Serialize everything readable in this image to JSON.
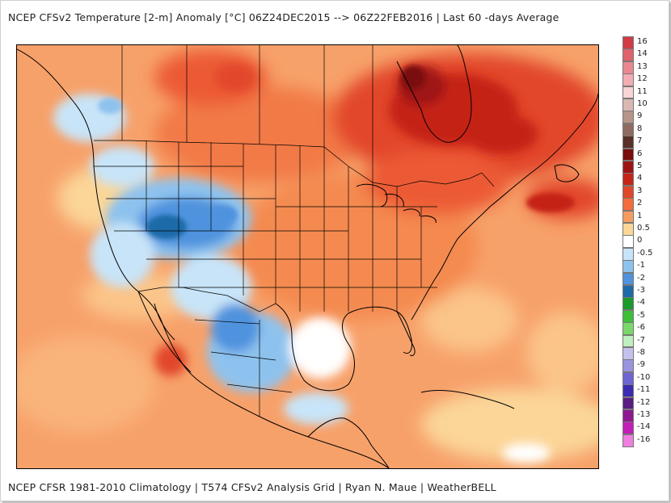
{
  "title": "NCEP CFSv2 Temperature [2-m] Anomaly  [°C] 06Z24DEC2015  --> 06Z22FEB2016 | Last 60 -days Average",
  "footer": "NCEP CFSR 1981-2010 Climatology | T574 CFSv2 Analysis Grid | Ryan N. Maue | WeatherBELL",
  "legend": {
    "labels": [
      "16",
      "14",
      "13",
      "12",
      "11",
      "10",
      "9",
      "8",
      "7",
      "6",
      "5",
      "4",
      "3",
      "2",
      "1",
      "0.5",
      "0",
      "-0.5",
      "-1",
      "-2",
      "-3",
      "-4",
      "-5",
      "-6",
      "-7",
      "-8",
      "-9",
      "-10",
      "-11",
      "-12",
      "-13",
      "-14",
      "-16"
    ],
    "colors": [
      "#d13b45",
      "#e0626c",
      "#ea8790",
      "#f2adb2",
      "#f8d4d4",
      "#d8b8b0",
      "#b8948a",
      "#8f6a60",
      "#5a3028",
      "#7a0c0c",
      "#9e1414",
      "#c52418",
      "#e2462a",
      "#f26c3c",
      "#f79c60",
      "#fbd698",
      "#ffffff",
      "#c8e4f8",
      "#8ec2ee",
      "#4f93de",
      "#1e6aa8",
      "#1a9a2a",
      "#3fbe3a",
      "#7ad86a",
      "#c0eec0",
      "#c4c0ec",
      "#9a94e0",
      "#6e64d2",
      "#3c2ab4",
      "#5a1c82",
      "#8e1892",
      "#c21eb8",
      "#ef7ee0"
    ]
  },
  "colors": {
    "frame_border": "#d0d0d0",
    "ocean_warm": "#f7a16a",
    "land_base": "#f48a50",
    "strong_warm": "#c52418",
    "very_strong_warm": "#9e1414",
    "cold": "#8ec2ee",
    "colder": "#4f93de",
    "near_zero": "#ffffff",
    "mild": "#fbd698"
  }
}
